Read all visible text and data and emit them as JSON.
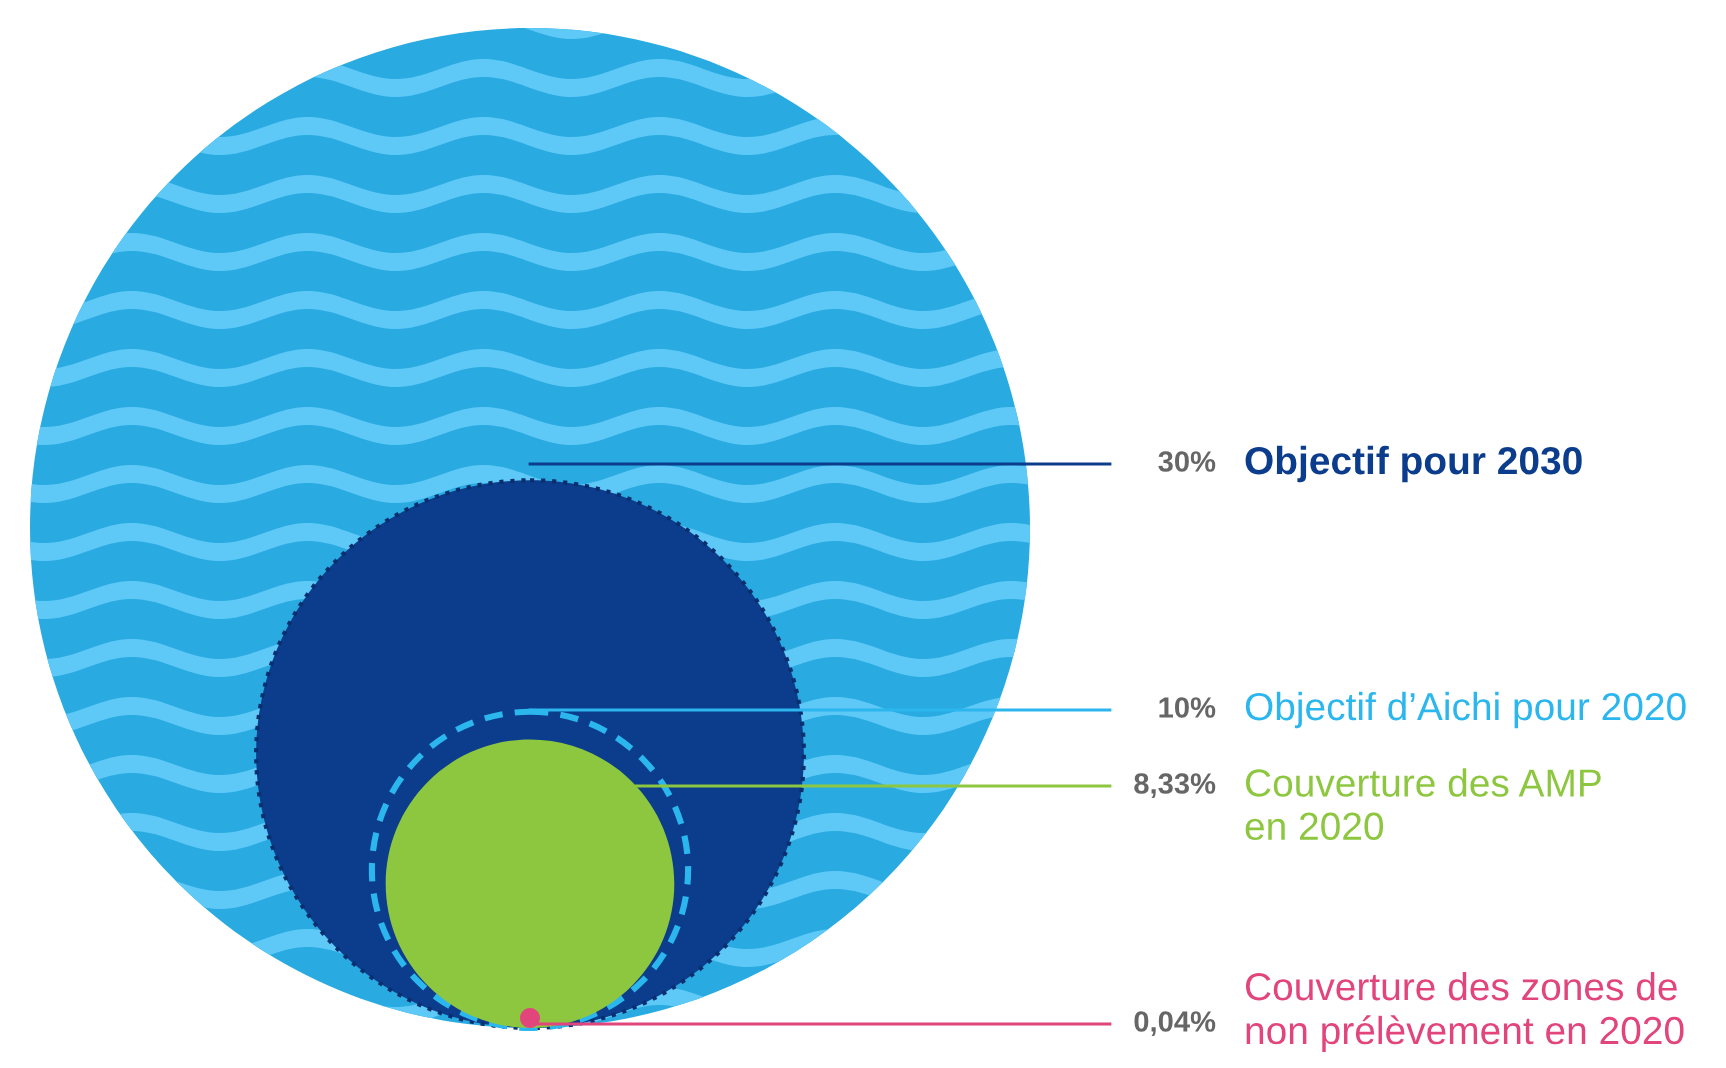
{
  "chart_data": {
    "type": "other",
    "categories": [
      "Objectif pour 2030",
      "Objectif d’Aichi pour 2020",
      "Couverture des AMP\nen 2020",
      "Couverture des zones de\nnon prélèvement en 2020"
    ],
    "values": [
      30,
      10,
      8.33,
      0.04
    ],
    "value_labels": [
      "30%",
      "10%",
      "8,33%",
      "0,04%"
    ],
    "colors": [
      "#0c3d8c",
      "#2cb6ee",
      "#8dc63f",
      "#e2457c"
    ]
  }
}
